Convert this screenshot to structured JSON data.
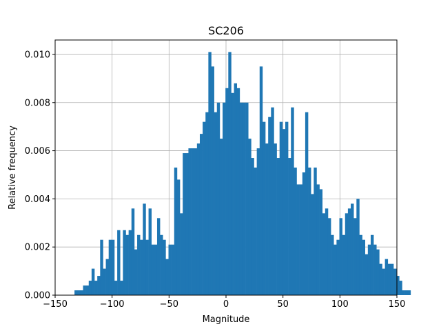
{
  "chart_data": {
    "type": "bar",
    "title": "SC206",
    "xlabel": "Magnitude",
    "ylabel": "Relative frequency",
    "xlim": [
      -150,
      150
    ],
    "ylim": [
      0,
      0.0106
    ],
    "xticks": [
      -150,
      -100,
      -50,
      0,
      50,
      100,
      150
    ],
    "xtick_labels": [
      "−150",
      "−100",
      "−50",
      "0",
      "50",
      "100",
      "150"
    ],
    "yticks": [
      0,
      0.002,
      0.004,
      0.006,
      0.008,
      0.01
    ],
    "ytick_labels": [
      "0.000",
      "0.002",
      "0.004",
      "0.006",
      "0.008",
      "0.010"
    ],
    "grid": true,
    "bar_color": "#1f77b4",
    "bin_start": -133,
    "bin_width": 2.5,
    "values": [
      0.0002,
      0.0002,
      0.0002,
      0.0004,
      0.0004,
      0.0006,
      0.0011,
      0.0006,
      0.0008,
      0.0023,
      0.0011,
      0.0015,
      0.0023,
      0.0023,
      0.0006,
      0.0027,
      0.0006,
      0.0027,
      0.0025,
      0.0027,
      0.0036,
      0.0019,
      0.0025,
      0.0023,
      0.0038,
      0.0023,
      0.0036,
      0.0021,
      0.0021,
      0.0032,
      0.0025,
      0.0023,
      0.0015,
      0.0021,
      0.0021,
      0.0053,
      0.0048,
      0.0034,
      0.0059,
      0.0059,
      0.0061,
      0.0061,
      0.0061,
      0.0063,
      0.0067,
      0.0072,
      0.0076,
      0.0101,
      0.0095,
      0.0076,
      0.008,
      0.0065,
      0.008,
      0.0086,
      0.0101,
      0.0084,
      0.0088,
      0.0086,
      0.008,
      0.008,
      0.008,
      0.0065,
      0.0057,
      0.0053,
      0.0061,
      0.0095,
      0.0072,
      0.0063,
      0.0074,
      0.0078,
      0.0063,
      0.0057,
      0.0072,
      0.0069,
      0.0072,
      0.0057,
      0.0078,
      0.0053,
      0.0046,
      0.0046,
      0.0051,
      0.0076,
      0.0053,
      0.0042,
      0.0053,
      0.0046,
      0.0044,
      0.0034,
      0.0036,
      0.0032,
      0.0025,
      0.0021,
      0.0023,
      0.0032,
      0.0025,
      0.0034,
      0.0036,
      0.0038,
      0.0032,
      0.004,
      0.0025,
      0.0023,
      0.0017,
      0.0021,
      0.0025,
      0.0021,
      0.0019,
      0.0013,
      0.0011,
      0.0015,
      0.0013,
      0.0013,
      0.0011,
      0.0008,
      0.0006,
      0.0002,
      0.0002,
      0.0002,
      0.0,
      0.0
    ]
  }
}
